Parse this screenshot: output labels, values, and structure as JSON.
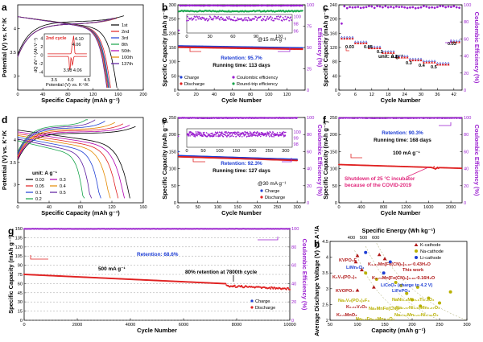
{
  "panels": [
    {
      "id": "a",
      "type": "line",
      "label": "a",
      "frame": [
        22,
        6,
        178,
        112
      ],
      "xlabel": "Specific Capacity (mAh g⁻¹)",
      "ylabel": "Potential (V) vs. K⁺/K",
      "xlim": [
        0,
        200
      ],
      "ylim": [
        2.7,
        4.5
      ],
      "xticks": [
        0,
        40,
        80,
        120,
        160,
        200
      ],
      "yticks": [
        3.0,
        3.5,
        4.0
      ],
      "legend": [
        "1st",
        "2nd",
        "3rd",
        "8th",
        "50th",
        "100th",
        "137th"
      ],
      "colors": [
        "#000000",
        "#e02020",
        "#1f3fd4",
        "#16a34a",
        "#b000b0",
        "#e48a00",
        "#5b1a9e"
      ],
      "inset": {
        "label": "2nd cycle",
        "ylabel": "dQ dV⁻¹ (Ah V⁻¹)",
        "xlabel": "Potential (V) vs. K⁺/K",
        "xticks": [
          3.5,
          4.0,
          4.5
        ],
        "xlim": [
          3.2,
          4.6
        ],
        "yticks": [
          -4,
          -2,
          0,
          2,
          4
        ],
        "peaks": [
          "4.10",
          "4.06",
          "3.98",
          "4.06"
        ]
      }
    },
    {
      "id": "b",
      "type": "scatter",
      "label": "b",
      "frame": [
        221,
        6,
        379,
        112
      ],
      "xlabel": "Cycle Number",
      "ylabel": "Specific Capacity (mAh g⁻¹)",
      "y2label": "Efficiency (%)",
      "xlim": [
        0,
        140
      ],
      "ylim": [
        0,
        300
      ],
      "y2lim": [
        0,
        100
      ],
      "xticks": [
        0,
        20,
        40,
        60,
        80,
        100,
        120
      ],
      "yticks": [
        0,
        50,
        100,
        150,
        200,
        250,
        300
      ],
      "y2ticks": [
        0,
        25,
        50,
        75,
        100
      ],
      "annotations": [
        "Retention: 95.7%",
        "Running time: 113 days",
        "@15 mA g⁻¹"
      ],
      "legend": [
        "Charge",
        "Discharge",
        "Coulombic efficiency",
        "Round-trip efficiency"
      ],
      "inset": {
        "xticks": [
          0,
          30,
          60,
          90,
          120
        ],
        "yticks": [
          96,
          98,
          100
        ]
      }
    },
    {
      "id": "c",
      "type": "scatter",
      "label": "c",
      "frame": [
        421,
        6,
        574,
        112
      ],
      "xlabel": "Cycle Number",
      "ylabel": "Specific Capacity (mAh g⁻¹)",
      "y2label": "Coulombic Efficiency (%)",
      "xlim": [
        0,
        45
      ],
      "ylim": [
        0,
        240
      ],
      "y2lim": [
        0,
        100
      ],
      "xticks": [
        0,
        6,
        12,
        18,
        24,
        30,
        36,
        42
      ],
      "yticks": [
        0,
        40,
        80,
        120,
        160,
        200,
        240
      ],
      "y2ticks": [
        0,
        20,
        40,
        60,
        80,
        100
      ],
      "annotations": [
        "unit: A g⁻¹"
      ],
      "rates": [
        "0.03",
        "0.05",
        "0.1",
        "0.2",
        "0.3",
        "0.4",
        "0.5",
        "0.03"
      ]
    },
    {
      "id": "d",
      "type": "line",
      "label": "d",
      "frame": [
        22,
        146,
        178,
        252
      ],
      "xlabel": "Specific Capacity (mAh g⁻¹)",
      "ylabel": "Potential (V) vs. K⁺/K",
      "xlim": [
        0,
        160
      ],
      "ylim": [
        2.6,
        4.5
      ],
      "xticks": [
        0,
        40,
        80,
        120,
        160
      ],
      "yticks": [
        3.0,
        3.5,
        4.0
      ],
      "legend_title": "unit: A g⁻¹",
      "legend": [
        "0.03",
        "0.3",
        "0.05",
        "0.4",
        "0.1",
        "0.5",
        "0.2"
      ],
      "colors": [
        "#000000",
        "#b000b0",
        "#e02020",
        "#e48a00",
        "#1f3fd4",
        "#5b1a9e",
        "#16a34a"
      ]
    },
    {
      "id": "e",
      "type": "scatter",
      "label": "e",
      "frame": [
        221,
        146,
        379,
        252
      ],
      "xlabel": "Cycle Number",
      "ylabel": "Specific Capacity (mAh g⁻¹)",
      "y2label": "Coulombic Efficiency (%)",
      "xlim": [
        0,
        320
      ],
      "ylim": [
        0,
        250
      ],
      "y2lim": [
        0,
        100
      ],
      "xticks": [
        0,
        50,
        100,
        150,
        200,
        250,
        300
      ],
      "yticks": [
        0,
        50,
        100,
        150,
        200,
        250
      ],
      "y2ticks": [
        0,
        20,
        40,
        60,
        80,
        100
      ],
      "annotations": [
        "Retention: 92.3%",
        "Running time: 127 days",
        "@30 mA g⁻¹"
      ],
      "legend": [
        "Charge",
        "Discharge"
      ],
      "inset": {
        "xticks": [
          0,
          50,
          100,
          150,
          200,
          250,
          300
        ],
        "yticks": [
          98,
          99,
          100
        ]
      }
    },
    {
      "id": "f",
      "type": "scatter",
      "label": "f",
      "frame": [
        421,
        146,
        574,
        252
      ],
      "xlabel": "Cycle Number",
      "ylabel": "Specific Capacity (mAh g⁻¹)",
      "y2label": "Coulombic Efficiency (%)",
      "xlim": [
        0,
        2200
      ],
      "ylim": [
        0,
        250
      ],
      "y2lim": [
        0,
        100
      ],
      "xticks": [
        0,
        400,
        800,
        1200,
        1600,
        2000
      ],
      "yticks": [
        0,
        50,
        100,
        150,
        200,
        250
      ],
      "y2ticks": [
        0,
        20,
        40,
        60,
        80,
        100
      ],
      "annotations": [
        "Retention: 90.3%",
        "Running time: 168 days",
        "100 mA g⁻¹",
        "Shutdown of 25 °C incubator",
        "because of the COVID-2019"
      ]
    },
    {
      "id": "g",
      "type": "scatter",
      "label": "g",
      "frame": [
        30,
        284,
        360,
        398
      ],
      "xlabel": "Cycle Number",
      "ylabel": "Specific Capacity (mAh g⁻¹)",
      "y2label": "Coulombic Efficiency (%)",
      "xlim": [
        0,
        10000
      ],
      "ylim": [
        0,
        150
      ],
      "y2lim": [
        0,
        100
      ],
      "xticks": [
        0,
        2000,
        4000,
        6000,
        8000,
        10000
      ],
      "yticks": [
        0,
        15,
        30,
        45,
        60,
        75,
        90,
        105,
        120,
        135,
        150
      ],
      "y2ticks": [
        0,
        20,
        40,
        60,
        80,
        100
      ],
      "annotations": [
        "Retention: 68.6%",
        "500 mA g⁻¹",
        "80% retention at 7800th cycle"
      ],
      "legend": [
        "Charge",
        "Discharge"
      ]
    },
    {
      "id": "h",
      "type": "scatter",
      "label": "h",
      "frame": [
        410,
        300,
        580,
        398
      ],
      "xlabel": "Capacity (mAh g⁻¹)",
      "ylabel": "Average Discharge Voltage (V) vs. A⁺/A",
      "x2label": "Specific Energy (Wh kg⁻¹)",
      "xlim": [
        50,
        300
      ],
      "ylim": [
        2.0,
        4.5
      ],
      "xticks": [
        50,
        100,
        150,
        200,
        250,
        300
      ],
      "yticks": [
        2.0,
        2.5,
        3.0,
        3.5,
        4.0,
        4.5
      ],
      "x2ticks": [
        "400",
        "500",
        "600"
      ],
      "legend": [
        "K-cathode",
        "Na-cathode",
        "Li-cathode"
      ],
      "labels": [
        "KVPO₄F",
        "LiMn₂O₄",
        "K₃V₂(PO₄)₃",
        "KVOPO₄",
        "K₁.₉₁Mn[Fe(CN)₆]₀.₉₇·0.43H₂O",
        "This work",
        "K₁.₇₅Mn[Fe(CN)₆]₀.₉₃·0.16H₂O",
        "LiCoO₂ (charge to 4.2 V)",
        "LiFePO₄",
        "Na₃V₂(PO₄)₂F₃",
        "Na₂MnFe(CN)₆",
        "K₀.₅₁V₂O₅",
        "NaNi₀.₃Mn₀.₃Ti₀.₃O₂",
        "K₀.₅MnO₂",
        "Na₀.₇Fe₀.₅Mn₀.₅O₂",
        "Na₀.₆₇Mn₀.₆₇Ni₀.₃₃O₂",
        "Na₀.₆₇Ni₀.₃₃Mn₀.₆₇O₂"
      ]
    }
  ],
  "colors": {
    "charge": "#1f3fd4",
    "discharge": "#e02020",
    "efficiency": "#9b1fd0",
    "roundtrip": "#16a34a",
    "na": "#b8b000",
    "k": "#b01818"
  }
}
